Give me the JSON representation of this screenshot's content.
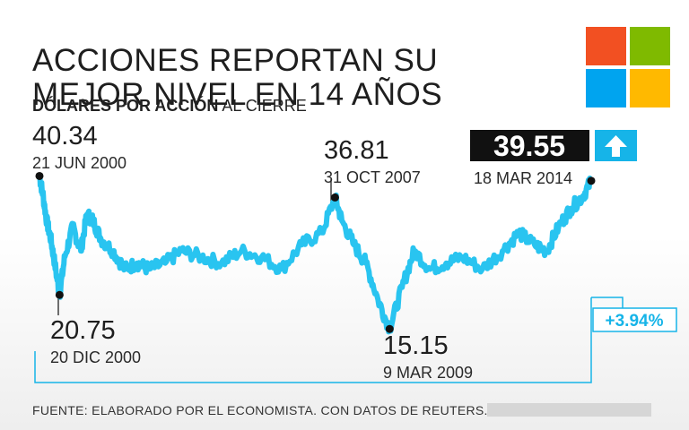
{
  "title_line1": "ACCIONES REPORTAN SU",
  "title_line2": "MEJOR NIVEL EN 14 AÑOS",
  "subtitle_bold": "DÓLARES POR ACCIÓN",
  "subtitle_rest": "AL CIERRE",
  "source": "FUENTE: ELABORADO POR EL ECONOMISTA. CON DATOS DE REUTERS.",
  "colors": {
    "line": "#29c4f0",
    "accent": "#16b4e8",
    "logo_red": "#f25022",
    "logo_green": "#7fba00",
    "logo_blue": "#00a4ef",
    "logo_yellow": "#ffb900"
  },
  "chart_data": {
    "type": "line",
    "title": "ACCIONES REPORTAN SU MEJOR NIVEL EN 14 AÑOS",
    "ylabel": "DÓLARES POR ACCIÓN AL CIERRE",
    "xlim": [
      2000.47,
      2014.21
    ],
    "ylim": [
      14,
      41
    ],
    "series": [
      {
        "name": "Microsoft",
        "x": [
          2000.47,
          2000.55,
          2000.65,
          2000.75,
          2000.85,
          2000.97,
          2001.1,
          2001.3,
          2001.5,
          2001.65,
          2001.8,
          2002.0,
          2002.3,
          2002.6,
          2002.9,
          2003.2,
          2003.6,
          2004.0,
          2004.5,
          2005.0,
          2005.5,
          2006.0,
          2006.5,
          2007.0,
          2007.5,
          2007.83,
          2008.0,
          2008.3,
          2008.6,
          2008.9,
          2009.19,
          2009.5,
          2009.8,
          2010.2,
          2010.6,
          2011.0,
          2011.5,
          2012.0,
          2012.4,
          2012.8,
          2013.1,
          2013.4,
          2013.7,
          2014.0,
          2014.21
        ],
        "y": [
          40.34,
          37.5,
          33,
          30,
          26,
          20.75,
          27,
          32,
          28,
          34,
          33,
          30,
          28,
          25,
          26,
          25,
          26,
          28,
          27,
          26,
          28,
          27,
          25,
          29,
          31,
          36.81,
          33,
          29,
          26,
          20,
          15.15,
          22,
          28,
          25,
          26,
          27,
          25,
          28,
          31,
          29,
          28,
          32,
          35,
          37,
          39.55
        ]
      }
    ],
    "annotations": [
      {
        "value": "40.34",
        "date": "21 JUN 2000",
        "x": 2000.47,
        "y": 40.34
      },
      {
        "value": "20.75",
        "date": "20 DIC 2000",
        "x": 2000.97,
        "y": 20.75
      },
      {
        "value": "36.81",
        "date": "31 OCT 2007",
        "x": 2007.83,
        "y": 36.81
      },
      {
        "value": "15.15",
        "date": "9 MAR 2009",
        "x": 2009.19,
        "y": 15.15
      },
      {
        "value": "39.55",
        "date": "18 MAR 2014",
        "x": 2014.21,
        "y": 39.55
      }
    ],
    "change_label": "+3.94%"
  }
}
